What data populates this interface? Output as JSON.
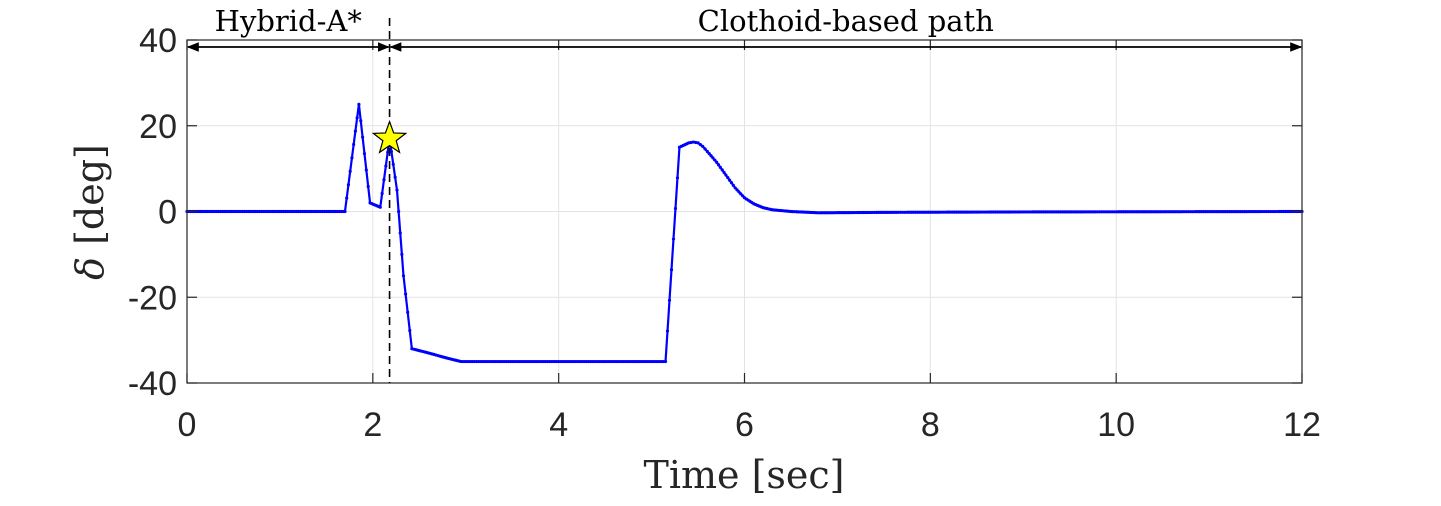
{
  "chart_data": {
    "type": "line",
    "xlabel": "Time [sec]",
    "ylabel_symbol": "δ",
    "ylabel_unit": "[deg]",
    "xlim": [
      0,
      12
    ],
    "ylim": [
      -40,
      40
    ],
    "xticks": [
      0,
      2,
      4,
      6,
      8,
      10,
      12
    ],
    "yticks": [
      40,
      20,
      0,
      -20,
      -40
    ],
    "grid": true,
    "series_color": "#0000ff",
    "regions": [
      {
        "label": "Hybrid-A*",
        "x_start": 0,
        "x_end": 2.18
      },
      {
        "label": "Clothoid-based path",
        "x_start": 2.18,
        "x_end": 12
      }
    ],
    "switch_time": 2.18,
    "marker": {
      "x": 2.18,
      "y": 17,
      "shape": "star",
      "color": "#ffff00"
    },
    "series": [
      {
        "x": [
          0,
          0.5,
          1.0,
          1.5,
          1.7,
          1.85,
          1.97,
          2.08,
          2.18,
          2.26,
          2.33,
          2.42,
          2.6,
          2.8,
          2.95,
          3.3,
          4.0,
          4.5,
          5.15,
          5.3,
          5.4,
          5.45,
          5.5,
          5.55,
          5.6,
          5.7,
          5.8,
          5.9,
          6.0,
          6.1,
          6.2,
          6.3,
          6.5,
          6.8,
          7.5,
          9,
          10.5,
          12
        ],
        "y": [
          0,
          0,
          0,
          0,
          0,
          25,
          2,
          1,
          17,
          5,
          -15,
          -32,
          -33,
          -34.2,
          -35,
          -35,
          -35,
          -35,
          -35,
          15,
          16,
          16.2,
          16,
          15.2,
          14,
          11.5,
          8.5,
          5.5,
          3.2,
          1.8,
          0.9,
          0.4,
          0,
          -0.3,
          -0.2,
          -0.1,
          -0.05,
          0
        ]
      }
    ]
  }
}
